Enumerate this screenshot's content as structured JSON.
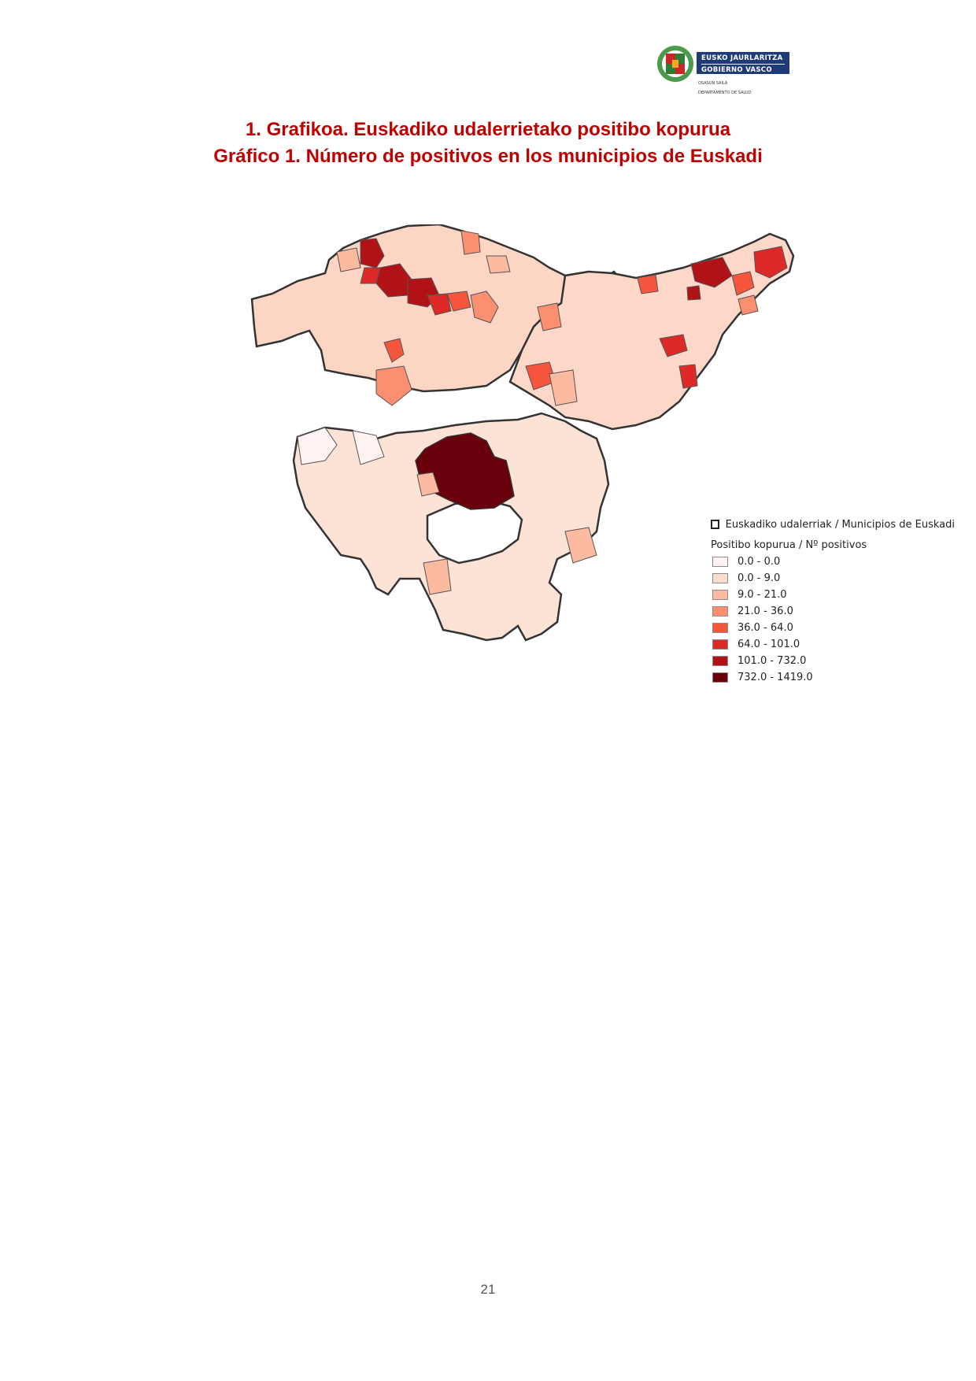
{
  "logo": {
    "line1": "EUSKO JAURLARITZA",
    "line2": "GOBIERNO VASCO",
    "sub1": "OSASUN SAILA",
    "sub2": "DEPARTAMENTO DE SALUD",
    "colors": {
      "bar": "#1f3a78",
      "emblem_green": "#2e7d32",
      "emblem_red": "#d32f2f"
    }
  },
  "title_eu": "1. Grafikoa. Euskadiko udalerrietako positibo kopurua",
  "title_es": "Gráfico 1. Número de positivos en los municipios de Euskadi",
  "legend": {
    "boundary_label": "Euskadiko udalerriak / Municipios de Euskadi",
    "heading": "Positibo kopurua / Nº positivos",
    "classes": [
      {
        "label": "0.0 - 0.0",
        "color": "#fef3f0"
      },
      {
        "label": "0.0 - 9.0",
        "color": "#fddcd0"
      },
      {
        "label": "9.0 - 21.0",
        "color": "#fcbba1"
      },
      {
        "label": "21.0 - 36.0",
        "color": "#fc8f6f"
      },
      {
        "label": "36.0 - 64.0",
        "color": "#f6553d"
      },
      {
        "label": "64.0 - 101.0",
        "color": "#de2a26"
      },
      {
        "label": "101.0 - 732.0",
        "color": "#b01218"
      },
      {
        "label": "732.0 - 1419.0",
        "color": "#6b000d"
      }
    ]
  },
  "page_number": "21"
}
